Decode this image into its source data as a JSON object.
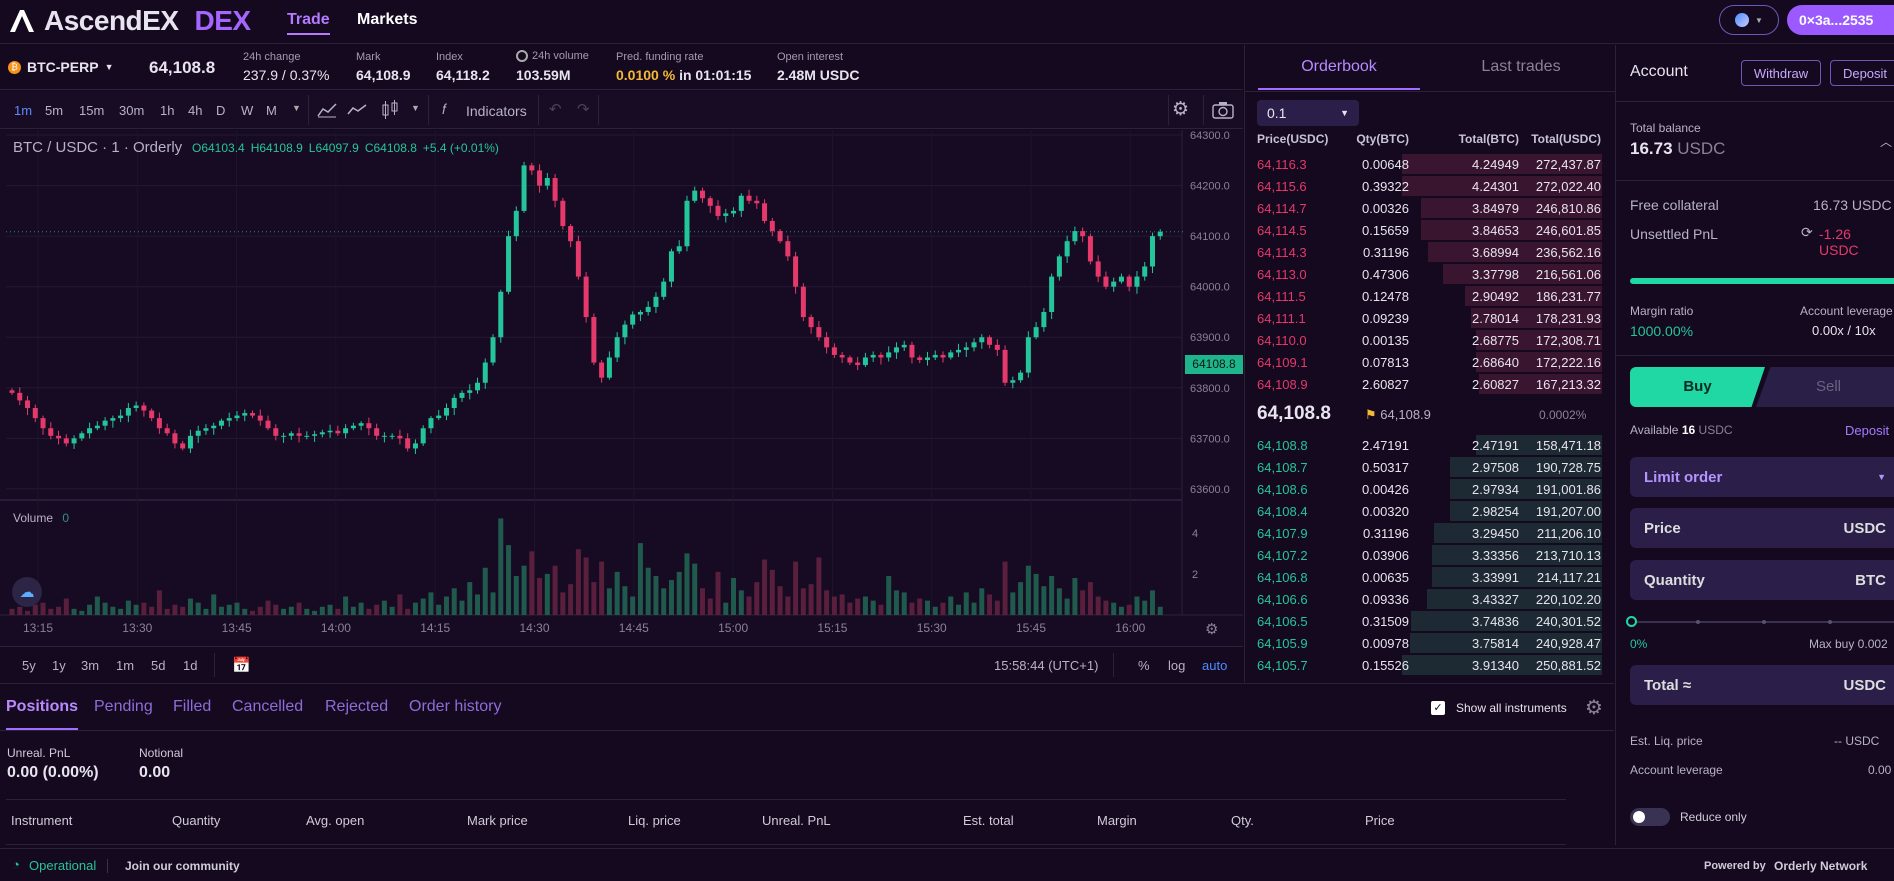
{
  "topnav": {
    "logo_text": "AscendEX",
    "logo_dex": "DEX",
    "trade": "Trade",
    "markets": "Markets",
    "wallet": "0×3a...2535"
  },
  "ticker": {
    "symbol": "BTC-PERP",
    "price": "64,108.8",
    "change_label": "24h change",
    "change_value": "237.9 / 0.37%",
    "mark_label": "Mark",
    "mark_value": "64,108.9",
    "index_label": "Index",
    "index_value": "64,118.2",
    "volume_label": "24h volume",
    "volume_value": "103.59M",
    "funding_label": "Pred. funding rate",
    "funding_rate": "0.0100 %",
    "funding_in": "in 01:01:15",
    "oi_label": "Open interest",
    "oi_value": "2.48M USDC"
  },
  "toolbar": {
    "timeframes": [
      "1m",
      "5m",
      "15m",
      "30m",
      "1h",
      "4h",
      "D",
      "W",
      "M"
    ],
    "indicators": "Indicators"
  },
  "chart": {
    "legend_title": "BTC / USDC · 1 · Orderly",
    "o": "O64103.4",
    "h": "H64108.9",
    "l": "L64097.9",
    "c": "C64108.8",
    "chg": "+5.4 (+0.01%)",
    "volume_label": "Volume",
    "volume_zero": "0",
    "last_price_tag": "64108.8",
    "time_readout": "15:58:44 (UTC+1)",
    "pct": "%",
    "log": "log",
    "auto": "auto",
    "ranges": [
      "5y",
      "1y",
      "3m",
      "1m",
      "5d",
      "1d"
    ],
    "colors": {
      "up": "#25c59b",
      "down": "#e5396b"
    }
  },
  "chart_data": {
    "type": "candlestick",
    "title": "BTC / USDC · 1 · Orderly",
    "xlabel": "",
    "ylabel": "",
    "y_ticks": [
      "64300.0",
      "64200.0",
      "64100.0",
      "64000.0",
      "63900.0",
      "63800.0",
      "63700.0",
      "63600.0"
    ],
    "x_ticks": [
      "13:15",
      "13:30",
      "13:45",
      "14:00",
      "14:15",
      "14:30",
      "14:45",
      "15:00",
      "15:15",
      "15:30",
      "15:45",
      "16:00"
    ],
    "ylim": [
      63580,
      64310
    ],
    "volume_ticks": [
      "4",
      "2"
    ],
    "close": [
      63790,
      63775,
      63760,
      63740,
      63720,
      63705,
      63700,
      63690,
      63700,
      63710,
      63720,
      63725,
      63735,
      63740,
      63745,
      63760,
      63765,
      63755,
      63740,
      63720,
      63710,
      63690,
      63680,
      63705,
      63715,
      63720,
      63725,
      63735,
      63740,
      63745,
      63750,
      63745,
      63735,
      63720,
      63705,
      63705,
      63710,
      63705,
      63705,
      63708,
      63712,
      63715,
      63710,
      63720,
      63725,
      63730,
      63720,
      63705,
      63705,
      63705,
      63700,
      63680,
      63690,
      63720,
      63740,
      63745,
      63760,
      63780,
      63790,
      63795,
      63810,
      63850,
      63900,
      63990,
      64100,
      64150,
      64240,
      64230,
      64200,
      64215,
      64170,
      64120,
      64090,
      64020,
      63940,
      63850,
      63820,
      63860,
      63900,
      63925,
      63945,
      63950,
      63960,
      63980,
      64010,
      64070,
      64080,
      64170,
      64190,
      64175,
      64160,
      64140,
      64145,
      64150,
      64180,
      64170,
      64165,
      64130,
      64110,
      64090,
      64060,
      64000,
      63940,
      63920,
      63900,
      63880,
      63865,
      63860,
      63850,
      63845,
      63860,
      63865,
      63860,
      63870,
      63880,
      63885,
      63860,
      63855,
      63860,
      63865,
      63860,
      63870,
      63875,
      63880,
      63890,
      63900,
      63885,
      63875,
      63810,
      63815,
      63830,
      63900,
      63920,
      63950,
      64020,
      64060,
      64090,
      64110,
      64100,
      64050,
      64020,
      64000,
      64010,
      64020,
      64000,
      64020,
      64040,
      64100,
      64108.8
    ],
    "volume": [
      0.3,
      0.4,
      0.2,
      0.5,
      0.6,
      0.3,
      0.4,
      0.8,
      0.3,
      0.2,
      0.5,
      0.9,
      0.6,
      0.4,
      0.3,
      0.7,
      0.5,
      0.6,
      0.4,
      1.2,
      0.3,
      0.5,
      0.4,
      0.8,
      0.6,
      0.3,
      1.0,
      0.4,
      0.5,
      0.6,
      0.3,
      0.2,
      0.4,
      0.7,
      0.5,
      0.3,
      0.4,
      0.6,
      0.3,
      0.2,
      0.4,
      0.5,
      0.3,
      0.9,
      0.4,
      0.6,
      0.3,
      0.5,
      0.7,
      0.4,
      1.0,
      0.3,
      0.6,
      0.8,
      1.1,
      0.5,
      0.9,
      1.3,
      0.7,
      1.6,
      1.0,
      2.3,
      1.1,
      4.7,
      3.4,
      1.9,
      2.4,
      3.1,
      1.8,
      2.0,
      2.4,
      1.1,
      1.5,
      3.2,
      2.8,
      1.6,
      2.6,
      1.3,
      2.1,
      1.4,
      0.9,
      3.5,
      2.3,
      1.9,
      1.3,
      1.7,
      2.1,
      3.0,
      2.5,
      1.3,
      0.8,
      2.1,
      0.6,
      1.8,
      1.2,
      0.9,
      1.6,
      2.7,
      2.2,
      1.4,
      0.9,
      2.6,
      1.3,
      1.5,
      2.8,
      1.2,
      0.9,
      1.0,
      0.6,
      0.8,
      0.9,
      0.7,
      0.5,
      1.9,
      1.2,
      1.1,
      0.6,
      0.8,
      0.7,
      0.4,
      0.6,
      0.9,
      0.5,
      1.1,
      0.6,
      1.3,
      1.0,
      0.7,
      2.6,
      1.1,
      1.6,
      2.4,
      2.0,
      1.4,
      1.9,
      1.3,
      0.8,
      1.8,
      1.2,
      1.6,
      0.9,
      0.7,
      0.6,
      0.4,
      0.5,
      0.9,
      0.7,
      1.2,
      0.4
    ]
  },
  "orderbook": {
    "tab_orderbook": "Orderbook",
    "tab_last": "Last trades",
    "precision": "0.1",
    "headers": [
      "Price(USDC)",
      "Qty(BTC)",
      "Total(BTC)",
      "Total(USDC)"
    ],
    "asks": [
      [
        "64,116.3",
        "0.00648",
        "4.24949",
        "272,437.87",
        1.0
      ],
      [
        "64,115.6",
        "0.39322",
        "4.24301",
        "272,022.40",
        0.998
      ],
      [
        "64,114.7",
        "0.00326",
        "3.84979",
        "246,810.86",
        0.906
      ],
      [
        "64,114.5",
        "0.15659",
        "3.84653",
        "246,601.85",
        0.905
      ],
      [
        "64,114.3",
        "0.31196",
        "3.68994",
        "236,562.16",
        0.868
      ],
      [
        "64,113.0",
        "0.47306",
        "3.37798",
        "216,561.06",
        0.795
      ],
      [
        "64,111.5",
        "0.12478",
        "2.90492",
        "186,231.77",
        0.684
      ],
      [
        "64,111.1",
        "0.09239",
        "2.78014",
        "178,231.93",
        0.654
      ],
      [
        "64,110.0",
        "0.00135",
        "2.68775",
        "172,308.71",
        0.632
      ],
      [
        "64,109.1",
        "0.07813",
        "2.68640",
        "172,222.16",
        0.632
      ],
      [
        "64,108.9",
        "2.60827",
        "2.60827",
        "167,213.32",
        0.614
      ]
    ],
    "mid_price": "64,108.8",
    "mid_mark": "64,108.9",
    "spread": "0.0002%",
    "bids": [
      [
        "64,108.8",
        "2.47191",
        "2.47191",
        "158,471.18",
        0.63
      ],
      [
        "64,108.7",
        "0.50317",
        "2.97508",
        "190,728.75",
        0.76
      ],
      [
        "64,108.6",
        "0.00426",
        "2.97934",
        "191,001.86",
        0.76
      ],
      [
        "64,108.4",
        "0.00320",
        "2.98254",
        "191,207.00",
        0.76
      ],
      [
        "64,107.9",
        "0.31196",
        "3.29450",
        "211,206.10",
        0.84
      ],
      [
        "64,107.2",
        "0.03906",
        "3.33356",
        "213,710.13",
        0.85
      ],
      [
        "64,106.8",
        "0.00635",
        "3.33991",
        "214,117.21",
        0.85
      ],
      [
        "64,106.6",
        "0.09336",
        "3.43327",
        "220,102.20",
        0.877
      ],
      [
        "64,106.5",
        "0.31509",
        "3.74836",
        "240,301.52",
        0.957
      ],
      [
        "64,105.9",
        "0.00978",
        "3.75814",
        "240,928.47",
        0.96
      ],
      [
        "64,105.7",
        "0.15526",
        "3.91340",
        "250,881.52",
        1.0
      ]
    ]
  },
  "account": {
    "title": "Account",
    "withdraw": "Withdraw",
    "deposit": "Deposit",
    "total_balance_label": "Total balance",
    "total_balance": "16.73",
    "usdc": "USDC",
    "free_collateral_label": "Free collateral",
    "free_collateral": "16.73 USDC",
    "unsettled_label": "Unsettled PnL",
    "unsettled": "-1.26 USDC",
    "margin_ratio_label": "Margin ratio",
    "margin_ratio": "1000.00%",
    "acct_leverage_label": "Account leverage",
    "acct_leverage": "0.00x / 10x",
    "buy": "Buy",
    "sell": "Sell",
    "available_label": "Available",
    "available_value": "16",
    "available_unit": "USDC",
    "deposit_link": "Deposit",
    "order_type": "Limit order",
    "price_label": "Price",
    "qty_label": "Quantity",
    "qty_unit": "BTC",
    "slider_min": "0%",
    "max_buy": "Max buy 0.002",
    "total_label": "Total ≈",
    "est_liq_label": "Est. Liq. price",
    "est_liq": "-- USDC",
    "leverage_label": "Account leverage",
    "leverage": "0.00",
    "reduce_only": "Reduce only"
  },
  "positions": {
    "tabs": [
      "Positions",
      "Pending",
      "Filled",
      "Cancelled",
      "Rejected",
      "Order history"
    ],
    "show_all": "Show all instruments",
    "unreal_label": "Unreal. PnL",
    "unreal_value": "0.00",
    "unreal_pct": "(0.00%)",
    "notional_label": "Notional",
    "notional_value": "0.00",
    "columns": [
      "Instrument",
      "Quantity",
      "Avg. open",
      "Mark price",
      "Liq. price",
      "Unreal. PnL",
      "Est. total",
      "Margin",
      "Qty.",
      "Price"
    ]
  },
  "footer": {
    "status": "Operational",
    "community": "Join our community",
    "powered": "Powered by",
    "network": "Orderly Network"
  }
}
